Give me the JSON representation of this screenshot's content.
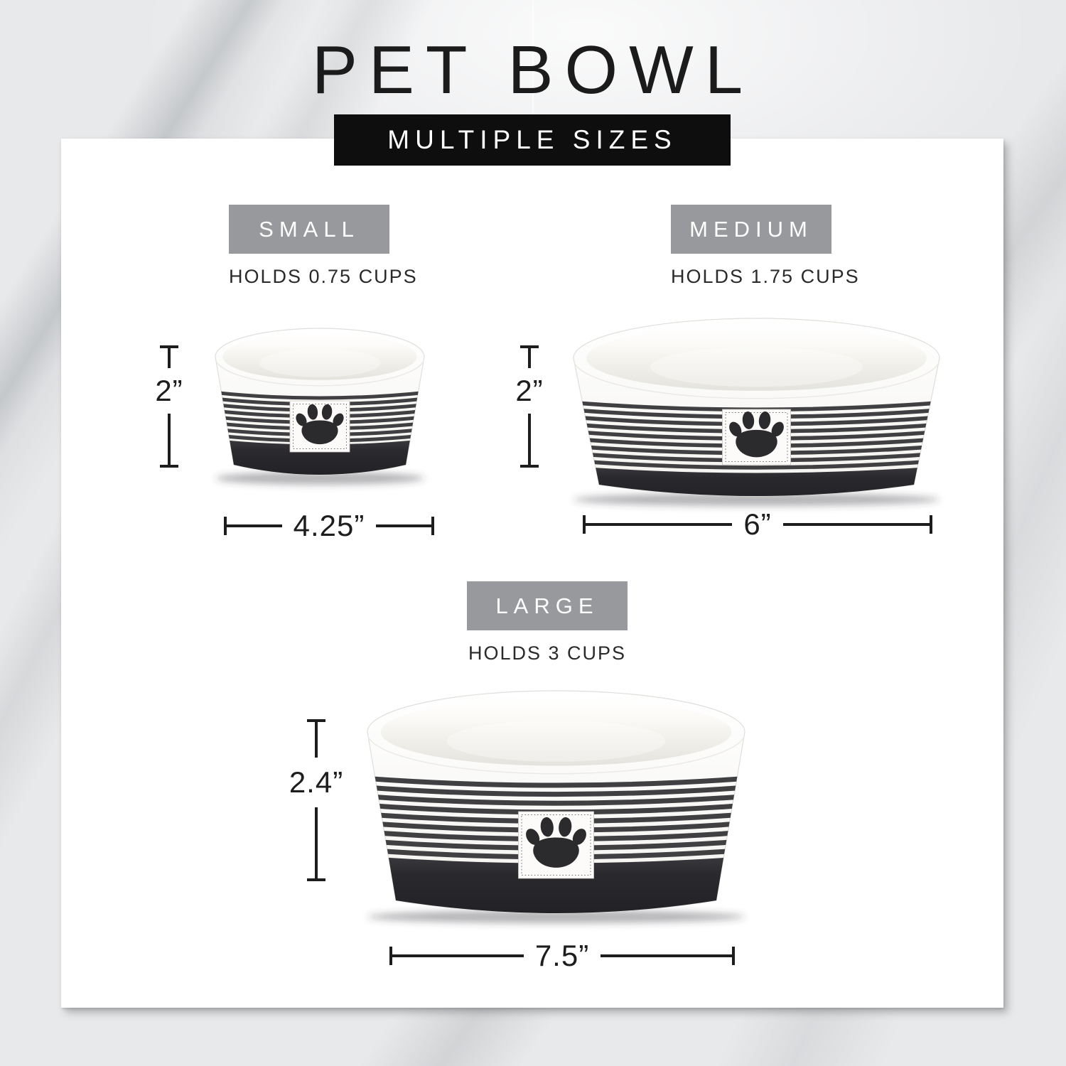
{
  "header": {
    "title": "PET BOWL",
    "banner": "MULTIPLE SIZES"
  },
  "sizes": [
    {
      "label": "SMALL",
      "capacity": "HOLDS 0.75 CUPS",
      "height_label": "2”",
      "width_label": "4.25”"
    },
    {
      "label": "MEDIUM",
      "capacity": "HOLDS 1.75 CUPS",
      "height_label": "2”",
      "width_label": "6”"
    },
    {
      "label": "LARGE",
      "capacity": "HOLDS 3 CUPS",
      "height_label": "2.4”",
      "width_label": "7.5”"
    }
  ],
  "icons": {
    "paw": "paw-print-icon"
  },
  "colors": {
    "badge_bg": "#97999c",
    "banner_bg": "#0e0e0e",
    "banner_text": "#ffffff",
    "title_text": "#1b1b1b",
    "body_text": "#2a2a2a",
    "dim_line": "#1d1d1d",
    "stripe": "#403f41",
    "bowl_base": "#232327",
    "paw": "#2b2a2d",
    "card_bg": "#ffffff",
    "marble_base": "#e8e9eb"
  }
}
